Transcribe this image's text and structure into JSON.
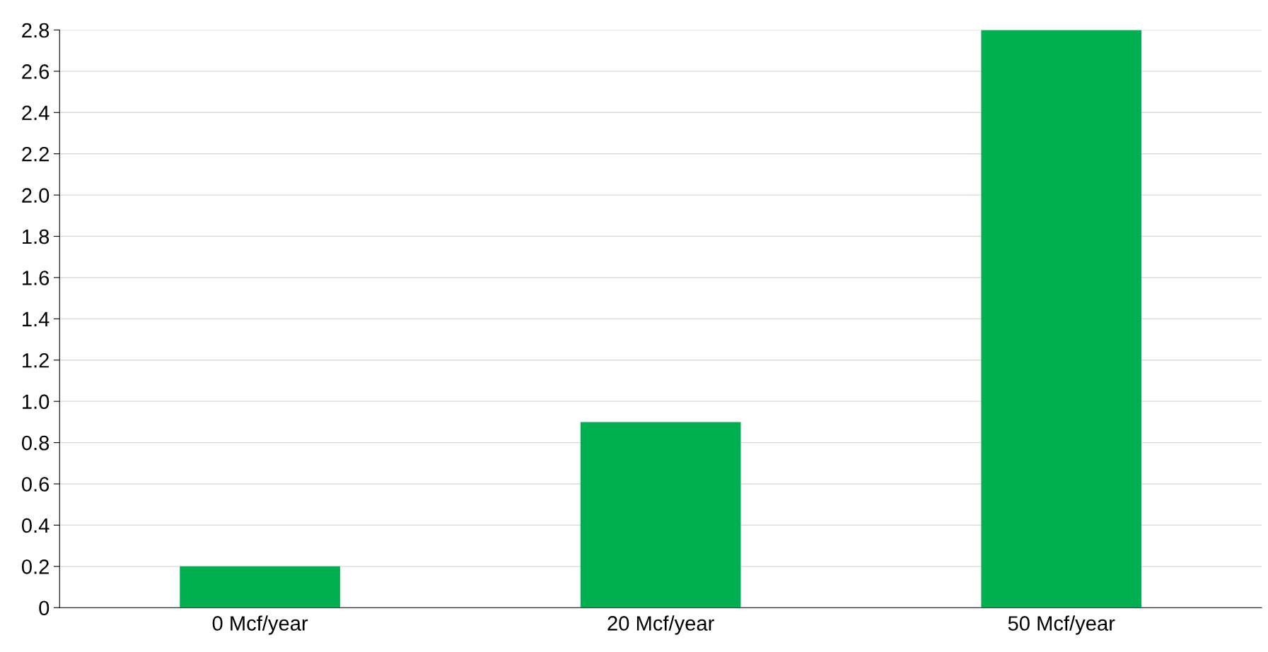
{
  "chart_data": {
    "type": "bar",
    "categories": [
      "0 Mcf/year",
      "20 Mcf/year",
      "50 Mcf/year"
    ],
    "values": [
      0.2,
      0.9,
      2.8
    ],
    "color": "#00b050",
    "ylim": [
      0,
      2.8
    ],
    "yticks": [
      0,
      0.2,
      0.4,
      0.6,
      0.8,
      {
        "value": 1.0,
        "label": "1.0"
      },
      1.2,
      1.4,
      1.6,
      1.8,
      {
        "value": 2.0,
        "label": "2.0"
      },
      2.2,
      2.4,
      2.6,
      2.8
    ],
    "grid": "y"
  }
}
